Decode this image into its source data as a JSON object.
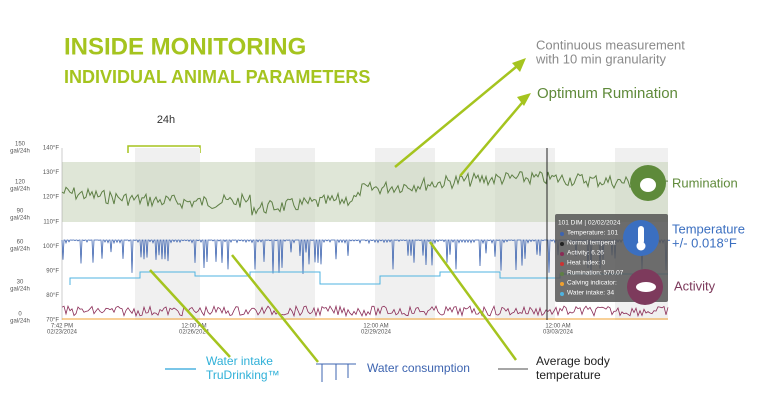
{
  "title": {
    "line1": "INSIDE MONITORING",
    "line2": "INDIVIDUAL ANIMAL PARAMETERS"
  },
  "notes": {
    "measurement": [
      "Continuous measurement",
      "with 10 min granularity"
    ],
    "optimum": "Optimum Rumination",
    "window": "24h"
  },
  "axis_left": {
    "volume": [
      "150",
      "gal/24h",
      "120",
      "gal/24h",
      "90",
      "gal/24h",
      "60",
      "gal/24h",
      "30",
      "gal/24h",
      "0",
      "gal/24h"
    ],
    "temperature": [
      "140°F",
      "130°F",
      "120°F",
      "110°F",
      "100°F",
      "90°F",
      "80°F",
      "70°F"
    ]
  },
  "axis_bottom": [
    [
      "7:42 PM",
      "02/23/2024"
    ],
    [
      "12:00 AM",
      "02/26/2024"
    ],
    [
      "12:00 AM",
      "02/29/2024"
    ],
    [
      "12:00 AM",
      "03/03/2024"
    ]
  ],
  "tooltip": [
    "101 DIM | 02/02/2024",
    "Temperature: 101",
    "Normal temperat",
    "Activity: 6.26",
    "Heat index: 0",
    "Rumination: 570.07",
    "Calving indicator:",
    "Water intake: 34"
  ],
  "side_labels": {
    "rumination": "Rumination",
    "temperature": [
      "Temperature",
      "+/- 0.018°F"
    ],
    "activity": "Activity"
  },
  "legend": {
    "water_intake": [
      "Water intake",
      "TruDrinking™"
    ],
    "water_consumption": "Water consumption",
    "body_temperature": [
      "Average body",
      "temperature"
    ]
  }
}
